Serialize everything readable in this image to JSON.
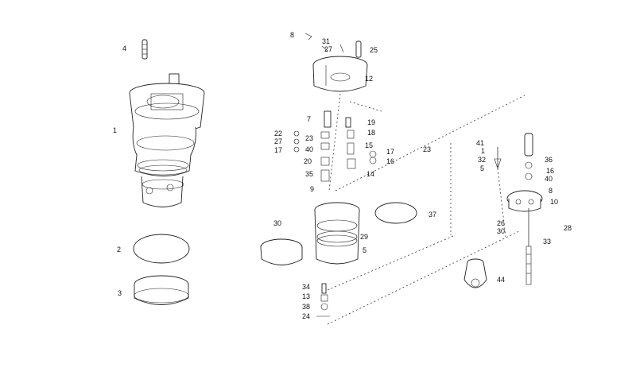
{
  "diagram": {
    "callouts": {
      "c4": "4",
      "c1": "1",
      "c2": "2",
      "c3": "3",
      "c8a": "8",
      "c31": "31",
      "c27a": "27",
      "c25": "25",
      "c12": "12",
      "c7": "7",
      "c19": "19",
      "c22": "22",
      "c23a": "23",
      "c18": "18",
      "c27b": "27",
      "c17a": "17",
      "c40a": "40",
      "c15": "15",
      "c17b": "17",
      "c20": "20",
      "c16a": "16",
      "c35": "35",
      "c14": "14",
      "c9": "9",
      "c29": "29",
      "c5a": "5",
      "c30a": "30",
      "c37": "37",
      "c23b": "23",
      "c34": "34",
      "c13": "13",
      "c38": "38",
      "c24": "24",
      "c41": "41",
      "c1b": "1",
      "c32": "32",
      "c5b": "5",
      "c36": "36",
      "c16b": "16",
      "c40b": "40",
      "c8b": "8",
      "c10": "10",
      "c26": "26",
      "c30b": "30",
      "c28": "28",
      "c33": "33",
      "c44": "44"
    }
  }
}
